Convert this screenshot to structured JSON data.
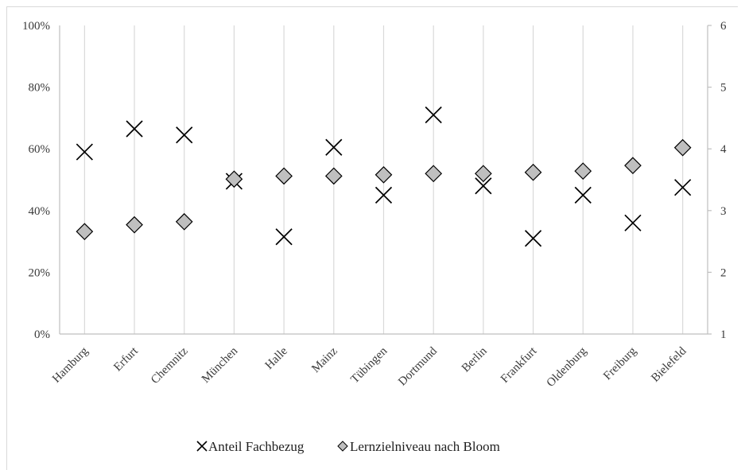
{
  "chart_data": {
    "type": "scatter",
    "categories": [
      "Hamburg",
      "Erfurt",
      "Chemnitz",
      "München",
      "Halle",
      "Mainz",
      "Tübingen",
      "Dortmund",
      "Berlin",
      "Frankfurt",
      "Oldenburg",
      "Freiburg",
      "Bielefeld"
    ],
    "series": [
      {
        "name": "Anteil Fachbezug",
        "axis": "left",
        "marker": "x",
        "color": "#000000",
        "values": [
          0.59,
          0.665,
          0.645,
          0.495,
          0.315,
          0.605,
          0.45,
          0.71,
          0.48,
          0.31,
          0.45,
          0.36,
          0.475
        ]
      },
      {
        "name": "Lernzielniveau nach Bloom",
        "axis": "right",
        "marker": "diamond",
        "color": "#bfbfbf",
        "stroke": "#000000",
        "values": [
          2.66,
          2.77,
          2.82,
          3.51,
          3.56,
          3.56,
          3.58,
          3.6,
          3.6,
          3.62,
          3.64,
          3.73,
          4.02
        ]
      }
    ],
    "y_left": {
      "ylim": [
        0,
        1
      ],
      "ticks": [
        0,
        0.2,
        0.4,
        0.6,
        0.8,
        1.0
      ],
      "tick_labels": [
        "0%",
        "20%",
        "40%",
        "60%",
        "80%",
        "100%"
      ]
    },
    "y_right": {
      "ylim": [
        1,
        6
      ],
      "ticks": [
        1,
        2,
        3,
        4,
        5,
        6
      ],
      "tick_labels": [
        "1",
        "2",
        "3",
        "4",
        "5",
        "6"
      ]
    },
    "grid": {
      "vertical": true,
      "horizontal": false
    },
    "legend": {
      "position": "bottom",
      "entries": [
        "Anteil Fachbezug",
        "Lernzielniveau nach Bloom"
      ]
    },
    "title": "",
    "xlabel": "",
    "ylabel": ""
  }
}
